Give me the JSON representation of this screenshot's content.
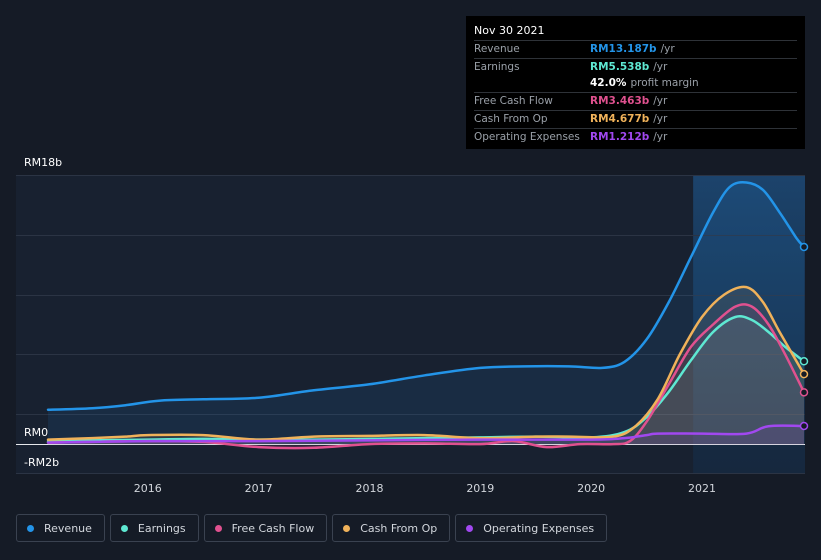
{
  "tooltip": {
    "date": "Nov 30 2021",
    "rows": [
      {
        "label": "Revenue",
        "value": "RM13.187b",
        "unit": "/yr",
        "color": "#2394e8"
      },
      {
        "label": "Earnings",
        "value": "RM5.538b",
        "unit": "/yr",
        "color": "#5ee8d2"
      },
      {
        "label": "",
        "value": "42.0%",
        "unit": "profit margin",
        "color": "#ffffff"
      },
      {
        "label": "Free Cash Flow",
        "value": "RM3.463b",
        "unit": "/yr",
        "color": "#e0518f"
      },
      {
        "label": "Cash From Op",
        "value": "RM4.677b",
        "unit": "/yr",
        "color": "#f0b25a"
      },
      {
        "label": "Operating Expenses",
        "value": "RM1.212b",
        "unit": "/yr",
        "color": "#a148f0"
      }
    ]
  },
  "legend": [
    {
      "label": "Revenue",
      "color": "#2394e8"
    },
    {
      "label": "Earnings",
      "color": "#5ee8d2"
    },
    {
      "label": "Free Cash Flow",
      "color": "#e0518f"
    },
    {
      "label": "Cash From Op",
      "color": "#f0b25a"
    },
    {
      "label": "Operating Expenses",
      "color": "#a148f0"
    }
  ],
  "chart_data": {
    "type": "line",
    "y_unit": "RM b",
    "ylim": [
      -2,
      18
    ],
    "y_tick_labels": [
      {
        "value": 18,
        "label": "RM18b"
      },
      {
        "value": 0,
        "label": "RM0"
      },
      {
        "value": -2,
        "label": "-RM2b"
      }
    ],
    "xlim": [
      2015.1,
      2021.92
    ],
    "x_tick_labels": [
      "2016",
      "2017",
      "2018",
      "2019",
      "2020",
      "2021"
    ],
    "highlight_start": 2020.92,
    "grid": true,
    "series": [
      {
        "name": "Revenue",
        "color": "#2394e8",
        "points": [
          [
            2015.1,
            2.3
          ],
          [
            2015.5,
            2.4
          ],
          [
            2015.8,
            2.6
          ],
          [
            2016.1,
            2.9
          ],
          [
            2016.5,
            3.0
          ],
          [
            2017.0,
            3.1
          ],
          [
            2017.5,
            3.6
          ],
          [
            2018.0,
            4.0
          ],
          [
            2018.5,
            4.6
          ],
          [
            2019.0,
            5.1
          ],
          [
            2019.4,
            5.2
          ],
          [
            2019.8,
            5.2
          ],
          [
            2020.1,
            5.1
          ],
          [
            2020.3,
            5.5
          ],
          [
            2020.5,
            7.0
          ],
          [
            2020.7,
            9.5
          ],
          [
            2020.9,
            12.5
          ],
          [
            2021.1,
            15.5
          ],
          [
            2021.25,
            17.2
          ],
          [
            2021.4,
            17.5
          ],
          [
            2021.55,
            17.0
          ],
          [
            2021.7,
            15.5
          ],
          [
            2021.85,
            13.8
          ],
          [
            2021.92,
            13.187
          ]
        ]
      },
      {
        "name": "Earnings",
        "color": "#5ee8d2",
        "points": [
          [
            2015.1,
            0.2
          ],
          [
            2015.5,
            0.25
          ],
          [
            2016.0,
            0.3
          ],
          [
            2016.5,
            0.35
          ],
          [
            2017.0,
            0.3
          ],
          [
            2017.5,
            0.3
          ],
          [
            2018.0,
            0.35
          ],
          [
            2018.5,
            0.4
          ],
          [
            2019.0,
            0.45
          ],
          [
            2019.5,
            0.5
          ],
          [
            2020.0,
            0.45
          ],
          [
            2020.3,
            0.8
          ],
          [
            2020.5,
            1.8
          ],
          [
            2020.7,
            3.5
          ],
          [
            2020.9,
            5.6
          ],
          [
            2021.1,
            7.5
          ],
          [
            2021.3,
            8.5
          ],
          [
            2021.45,
            8.3
          ],
          [
            2021.6,
            7.5
          ],
          [
            2021.75,
            6.5
          ],
          [
            2021.92,
            5.538
          ]
        ]
      },
      {
        "name": "Free Cash Flow",
        "color": "#e0518f",
        "points": [
          [
            2015.1,
            0.1
          ],
          [
            2015.5,
            0.15
          ],
          [
            2016.0,
            0.2
          ],
          [
            2016.5,
            0.15
          ],
          [
            2017.0,
            -0.2
          ],
          [
            2017.5,
            -0.25
          ],
          [
            2018.0,
            0.0
          ],
          [
            2018.5,
            0.05
          ],
          [
            2019.0,
            0.0
          ],
          [
            2019.3,
            0.2
          ],
          [
            2019.6,
            -0.2
          ],
          [
            2019.9,
            0.0
          ],
          [
            2020.2,
            0.0
          ],
          [
            2020.35,
            0.2
          ],
          [
            2020.5,
            1.5
          ],
          [
            2020.7,
            4.0
          ],
          [
            2020.9,
            6.5
          ],
          [
            2021.1,
            8.0
          ],
          [
            2021.3,
            9.2
          ],
          [
            2021.45,
            9.2
          ],
          [
            2021.6,
            8.0
          ],
          [
            2021.75,
            6.0
          ],
          [
            2021.92,
            3.463
          ]
        ]
      },
      {
        "name": "Cash From Op",
        "color": "#f0b25a",
        "points": [
          [
            2015.1,
            0.3
          ],
          [
            2015.5,
            0.4
          ],
          [
            2015.8,
            0.5
          ],
          [
            2016.0,
            0.6
          ],
          [
            2016.5,
            0.6
          ],
          [
            2017.0,
            0.3
          ],
          [
            2017.5,
            0.5
          ],
          [
            2018.0,
            0.55
          ],
          [
            2018.5,
            0.6
          ],
          [
            2019.0,
            0.4
          ],
          [
            2019.5,
            0.5
          ],
          [
            2019.8,
            0.5
          ],
          [
            2020.2,
            0.5
          ],
          [
            2020.4,
            1.2
          ],
          [
            2020.6,
            3.0
          ],
          [
            2020.8,
            6.0
          ],
          [
            2021.0,
            8.5
          ],
          [
            2021.2,
            10.0
          ],
          [
            2021.4,
            10.5
          ],
          [
            2021.55,
            9.5
          ],
          [
            2021.7,
            7.5
          ],
          [
            2021.92,
            4.677
          ]
        ]
      },
      {
        "name": "Operating Expenses",
        "color": "#a148f0",
        "points": [
          [
            2015.1,
            0.1
          ],
          [
            2016.0,
            0.2
          ],
          [
            2017.0,
            0.2
          ],
          [
            2018.0,
            0.25
          ],
          [
            2019.0,
            0.3
          ],
          [
            2020.0,
            0.3
          ],
          [
            2020.3,
            0.4
          ],
          [
            2020.5,
            0.6
          ],
          [
            2020.6,
            0.7
          ],
          [
            2021.0,
            0.7
          ],
          [
            2021.4,
            0.7
          ],
          [
            2021.6,
            1.2
          ],
          [
            2021.92,
            1.212
          ]
        ]
      }
    ]
  }
}
